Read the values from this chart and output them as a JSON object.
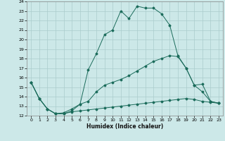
{
  "xlabel": "Humidex (Indice chaleur)",
  "bg_color": "#cce8e8",
  "grid_color": "#aacccc",
  "line_color": "#1a6b5a",
  "xlim": [
    -0.5,
    23.5
  ],
  "ylim": [
    12,
    24
  ],
  "xticks": [
    0,
    1,
    2,
    3,
    4,
    5,
    6,
    7,
    8,
    9,
    10,
    11,
    12,
    13,
    14,
    15,
    16,
    17,
    18,
    19,
    20,
    21,
    22,
    23
  ],
  "yticks": [
    12,
    13,
    14,
    15,
    16,
    17,
    18,
    19,
    20,
    21,
    22,
    23,
    24
  ],
  "line1_x": [
    0,
    1,
    2,
    3,
    4,
    5,
    6,
    7,
    8,
    9,
    10,
    11,
    12,
    13,
    14,
    15,
    16,
    17,
    18,
    19,
    20,
    21,
    22,
    23
  ],
  "line1_y": [
    15.5,
    13.8,
    12.7,
    12.2,
    12.2,
    12.5,
    13.2,
    16.8,
    18.5,
    20.5,
    21.0,
    23.0,
    22.2,
    23.5,
    23.3,
    23.3,
    22.7,
    21.5,
    18.3,
    17.0,
    15.2,
    14.5,
    13.5,
    13.3
  ],
  "line2_x": [
    0,
    1,
    2,
    3,
    4,
    5,
    6,
    7,
    8,
    9,
    10,
    11,
    12,
    13,
    14,
    15,
    16,
    17,
    18,
    19,
    20,
    21,
    22,
    23
  ],
  "line2_y": [
    15.5,
    13.8,
    12.7,
    12.2,
    12.3,
    12.7,
    13.2,
    13.5,
    14.5,
    15.2,
    15.5,
    15.8,
    16.2,
    16.7,
    17.2,
    17.7,
    18.0,
    18.3,
    18.2,
    17.0,
    15.2,
    15.3,
    13.5,
    13.3
  ],
  "line3_x": [
    0,
    1,
    2,
    3,
    4,
    5,
    6,
    7,
    8,
    9,
    10,
    11,
    12,
    13,
    14,
    15,
    16,
    17,
    18,
    19,
    20,
    21,
    22,
    23
  ],
  "line3_y": [
    15.5,
    13.8,
    12.7,
    12.2,
    12.2,
    12.4,
    12.5,
    12.6,
    12.7,
    12.8,
    12.9,
    13.0,
    13.1,
    13.2,
    13.3,
    13.4,
    13.5,
    13.6,
    13.7,
    13.8,
    13.7,
    13.5,
    13.4,
    13.3
  ]
}
